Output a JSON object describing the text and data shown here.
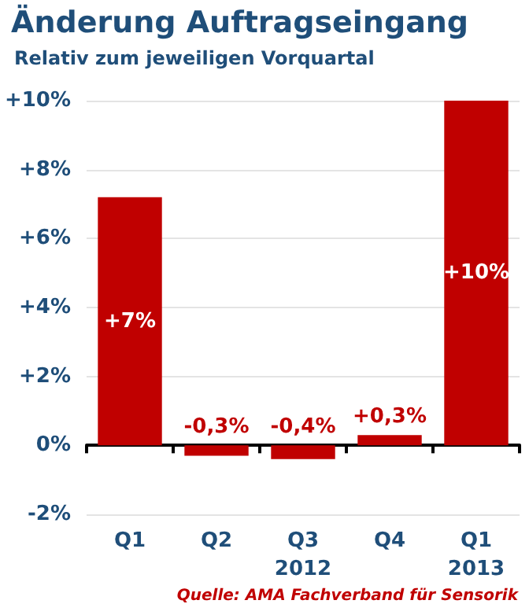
{
  "chart_data": {
    "type": "bar",
    "title": "Änderung Auftragseingang",
    "subtitle": "Relativ zum jeweiligen Vorquartal",
    "categories": [
      "Q1",
      "Q2",
      "Q3\n2012",
      "Q4",
      "Q1\n2013"
    ],
    "values": [
      7.2,
      -0.3,
      -0.4,
      0.3,
      10
    ],
    "value_labels": [
      "+7%",
      "-0,3%",
      "-0,4%",
      "+0,3%",
      "+10%"
    ],
    "color": "#c00000",
    "ylim": [
      -2,
      10
    ],
    "yticks": [
      {
        "value": -2,
        "label": "-2%"
      },
      {
        "value": 0,
        "label": "0%"
      },
      {
        "value": 2,
        "label": "+2%"
      },
      {
        "value": 4,
        "label": "+4%"
      },
      {
        "value": 6,
        "label": "+6%"
      },
      {
        "value": 8,
        "label": "+8%"
      },
      {
        "value": 10,
        "label": "+10%"
      }
    ],
    "grid": "y",
    "annotations": [
      "Quelle: AMA Fachverband für Sensorik"
    ]
  }
}
